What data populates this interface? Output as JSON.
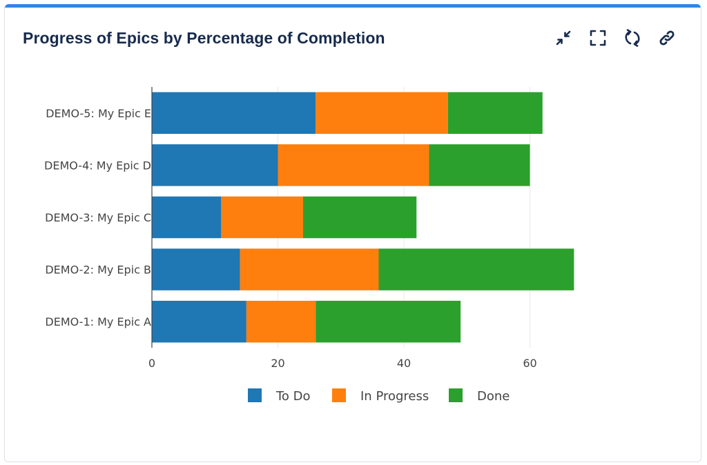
{
  "header": {
    "title": "Progress of Epics by Percentage of Completion"
  },
  "actions": [
    {
      "name": "minimize-icon"
    },
    {
      "name": "fullscreen-icon"
    },
    {
      "name": "refresh-icon"
    },
    {
      "name": "link-icon"
    }
  ],
  "colors": {
    "todo": "#1f77b4",
    "in_progress": "#ff7f0e",
    "done": "#2ca02c",
    "accent": "#2f86e8",
    "grid": "#e8e8e8",
    "axis": "#444444"
  },
  "chart_data": {
    "type": "bar",
    "orientation": "horizontal",
    "stacked": true,
    "categories": [
      "DEMO-5: My Epic E",
      "DEMO-4: My Epic D",
      "DEMO-3: My Epic C",
      "DEMO-2: My Epic B",
      "DEMO-1: My Epic A"
    ],
    "series": [
      {
        "name": "To Do",
        "values": [
          26,
          20,
          11,
          14,
          15
        ]
      },
      {
        "name": "In Progress",
        "values": [
          21,
          24,
          13,
          22,
          11
        ]
      },
      {
        "name": "Done",
        "values": [
          15,
          16,
          18,
          31,
          23
        ]
      }
    ],
    "xlim": [
      0,
      70
    ],
    "xticks": [
      0,
      20,
      40,
      60
    ],
    "xlabel": "",
    "ylabel": "",
    "grid": true,
    "legend": "bottom"
  }
}
